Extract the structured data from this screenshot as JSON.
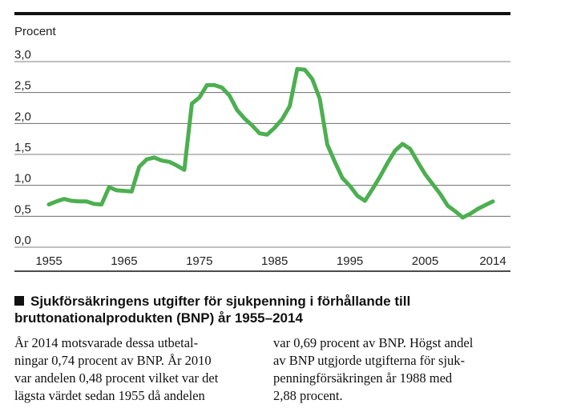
{
  "chart_data": {
    "type": "line",
    "ylabel": "Procent",
    "ylim": [
      0,
      3.0
    ],
    "xlim": [
      1955,
      2014
    ],
    "y_ticks": [
      "0,0",
      "0,5",
      "1,0",
      "1,5",
      "2,0",
      "2,5",
      "3,0"
    ],
    "x_ticks": [
      "1955",
      "1965",
      "1975",
      "1985",
      "1995",
      "2005",
      "2014"
    ],
    "grid": true,
    "line_color": "#4caf50",
    "series": [
      {
        "x": [
          1955,
          1956,
          1957,
          1958,
          1959,
          1960,
          1961,
          1962,
          1963,
          1964,
          1965,
          1966,
          1967,
          1968,
          1969,
          1970,
          1971,
          1972,
          1973,
          1974,
          1975,
          1976,
          1977,
          1978,
          1979,
          1980,
          1981,
          1982,
          1983,
          1984,
          1985,
          1986,
          1987,
          1988,
          1989,
          1990,
          1991,
          1992,
          1993,
          1994,
          1995,
          1996,
          1997,
          1998,
          1999,
          2000,
          2001,
          2002,
          2003,
          2004,
          2005,
          2006,
          2007,
          2008,
          2009,
          2010,
          2011,
          2012,
          2013,
          2014
        ],
        "y": [
          0.69,
          0.74,
          0.78,
          0.75,
          0.74,
          0.74,
          0.7,
          0.69,
          0.97,
          0.92,
          0.91,
          0.9,
          1.3,
          1.42,
          1.45,
          1.4,
          1.38,
          1.32,
          1.25,
          2.32,
          2.42,
          2.62,
          2.62,
          2.58,
          2.45,
          2.22,
          2.08,
          1.97,
          1.84,
          1.82,
          1.93,
          2.07,
          2.28,
          2.88,
          2.87,
          2.72,
          2.4,
          1.66,
          1.38,
          1.12,
          0.99,
          0.83,
          0.75,
          0.94,
          1.14,
          1.36,
          1.56,
          1.67,
          1.59,
          1.38,
          1.18,
          1.02,
          0.86,
          0.67,
          0.58,
          0.48,
          0.54,
          0.62,
          0.68,
          0.74
        ]
      }
    ]
  },
  "caption": {
    "title": "Sjukförsäkringens utgifter för sjukpenning i förhållande till bruttonationalprodukten (BNP) år 1955–2014"
  },
  "body": {
    "col1": [
      "År 2014 motsvarade dessa utbetal-",
      "ningar 0,74 procent av BNP. År 2010",
      "var andelen 0,48 procent vilket var det",
      "lägsta värdet sedan 1955 då andelen"
    ],
    "col2": [
      "var 0,69 procent av BNP. Högst andel",
      "av BNP utgjorde utgifterna för sjuk-",
      "penningförsäkringen år 1988 med",
      "2,88 procent."
    ]
  }
}
